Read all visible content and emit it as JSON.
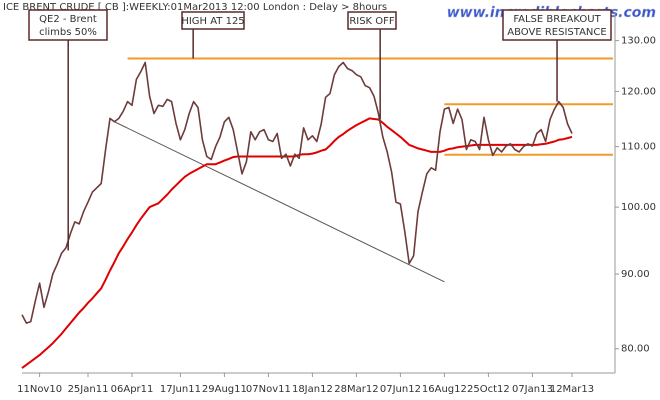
{
  "chart_data": {
    "type": "line",
    "title": "ICE BRENT CRUDE [ CB ]:WEEKLY:01Mar2013 12:00 London : Delay > 8hours",
    "watermark": "www.incrediblecharts.com",
    "categories": [
      null,
      null,
      null,
      null,
      "11Nov10",
      null,
      null,
      null,
      null,
      null,
      null,
      null,
      null,
      null,
      null,
      "25Jan11",
      null,
      null,
      null,
      null,
      null,
      null,
      null,
      null,
      null,
      "06Apr11",
      null,
      null,
      null,
      null,
      null,
      null,
      null,
      null,
      null,
      null,
      "17Jun11",
      null,
      null,
      null,
      null,
      null,
      null,
      null,
      null,
      null,
      "29Aug11",
      null,
      null,
      null,
      null,
      null,
      null,
      null,
      null,
      null,
      "07Nov11",
      null,
      null,
      null,
      null,
      null,
      null,
      null,
      null,
      null,
      "18Jan12",
      null,
      null,
      null,
      null,
      null,
      null,
      null,
      null,
      null,
      "28Mar12",
      null,
      null,
      null,
      null,
      null,
      null,
      null,
      null,
      null,
      "07Jun12",
      null,
      null,
      null,
      null,
      null,
      null,
      null,
      null,
      null,
      "16Aug12",
      null,
      null,
      null,
      null,
      null,
      null,
      null,
      null,
      null,
      "25Oct12",
      null,
      null,
      null,
      null,
      null,
      null,
      null,
      null,
      null,
      "07Jan13",
      null,
      null,
      null,
      null,
      null,
      null,
      null,
      null,
      "12Mar13"
    ],
    "series": [
      {
        "color": "#6e3b3b",
        "values": [
          84.4,
          83.3,
          83.5,
          86.2,
          88.7,
          85.4,
          87.5,
          90.0,
          91.4,
          93.0,
          93.8,
          95.9,
          97.7,
          97.4,
          99.3,
          100.8,
          102.4,
          103.1,
          103.8,
          109.5,
          115.0,
          114.4,
          115.0,
          116.3,
          118.1,
          117.4,
          122.3,
          123.8,
          125.6,
          119.1,
          115.9,
          117.4,
          117.2,
          118.5,
          118.1,
          114.1,
          111.2,
          113.0,
          115.9,
          118.1,
          117.0,
          111.2,
          108.3,
          107.8,
          110.0,
          111.7,
          114.4,
          115.2,
          113.0,
          109.1,
          105.4,
          107.4,
          112.6,
          111.2,
          112.6,
          113.0,
          111.2,
          110.9,
          112.3,
          108.0,
          108.7,
          106.7,
          108.7,
          108.0,
          113.3,
          111.2,
          111.9,
          110.9,
          114.0,
          118.9,
          119.6,
          123.2,
          124.8,
          125.6,
          124.4,
          124.0,
          123.2,
          122.8,
          121.1,
          120.7,
          119.1,
          115.9,
          111.7,
          109.1,
          105.7,
          100.8,
          100.5,
          96.2,
          91.5,
          92.6,
          99.3,
          102.4,
          105.4,
          106.4,
          106.0,
          112.6,
          116.7,
          117.0,
          114.1,
          116.7,
          114.8,
          109.5,
          111.2,
          110.9,
          109.5,
          115.2,
          111.2,
          108.5,
          109.8,
          109.1,
          110.1,
          110.5,
          109.5,
          109.1,
          110.0,
          110.5,
          110.1,
          112.3,
          113.0,
          110.9,
          114.8,
          116.7,
          118.1,
          117.0,
          114.0,
          112.3
        ]
      },
      {
        "color": "#e00000",
        "values": [
          77.6,
          78.0,
          78.4,
          78.8,
          79.2,
          79.7,
          80.2,
          80.7,
          81.3,
          81.9,
          82.6,
          83.3,
          84.0,
          84.7,
          85.3,
          86.0,
          86.6,
          87.3,
          88.0,
          89.2,
          90.5,
          91.7,
          93.0,
          94.0,
          95.1,
          96.1,
          97.2,
          98.2,
          99.1,
          100.0,
          100.3,
          100.6,
          101.3,
          102.0,
          102.8,
          103.5,
          104.2,
          104.9,
          105.4,
          105.8,
          106.2,
          106.6,
          107.0,
          107.0,
          107.0,
          107.3,
          107.6,
          107.9,
          108.2,
          108.3,
          108.3,
          108.3,
          108.3,
          108.3,
          108.3,
          108.3,
          108.3,
          108.3,
          108.3,
          108.3,
          108.3,
          108.3,
          108.3,
          108.6,
          108.7,
          108.7,
          108.8,
          109.0,
          109.3,
          109.5,
          110.2,
          111.0,
          111.7,
          112.2,
          112.8,
          113.3,
          113.8,
          114.2,
          114.6,
          115.0,
          114.9,
          114.8,
          114.2,
          113.5,
          112.9,
          112.3,
          111.7,
          111.0,
          110.3,
          110.0,
          109.7,
          109.5,
          109.3,
          109.1,
          109.1,
          109.1,
          109.3,
          109.6,
          109.7,
          109.9,
          110.0,
          110.1,
          110.2,
          110.3,
          110.3,
          110.3,
          110.3,
          110.3,
          110.3,
          110.3,
          110.3,
          110.3,
          110.3,
          110.3,
          110.3,
          110.3,
          110.3,
          110.3,
          110.4,
          110.5,
          110.7,
          110.9,
          111.2,
          111.3,
          111.5,
          111.7
        ]
      }
    ],
    "log_y": true,
    "ylim": [
      77,
      136
    ],
    "yticks": [
      {
        "value": 80,
        "label": "80.00"
      },
      {
        "value": 90,
        "label": "90.00"
      },
      {
        "value": 100,
        "label": "100.00"
      },
      {
        "value": 110,
        "label": "110.00"
      },
      {
        "value": 120,
        "label": "120.00"
      },
      {
        "value": 130,
        "label": "130.00"
      }
    ],
    "levels": [
      {
        "y": 126.4,
        "from": 24,
        "color": "#f09a28"
      },
      {
        "y": 117.6,
        "from": 96,
        "color": "#f09a28"
      },
      {
        "y": 108.6,
        "from": 96,
        "color": "#f09a28"
      }
    ],
    "trendline": {
      "x": [
        21,
        96
      ],
      "y": [
        114.4,
        88.9
      ],
      "color": "#555555"
    },
    "annotations": [
      {
        "text": [
          "QE2 - Brent",
          "climbs 50%"
        ],
        "x": 10.5,
        "y": 93.4
      },
      {
        "text": [
          "HIGH AT 125"
        ],
        "x": 38.9,
        "y": 126.4
      },
      {
        "text": [
          "RISK OFF"
        ],
        "x": 81.4,
        "y": 114.8
      },
      {
        "text": [
          "FALSE BREAKOUT",
          "ABOVE RESISTANCE"
        ],
        "x": 121.6,
        "y": 118.1
      }
    ]
  }
}
